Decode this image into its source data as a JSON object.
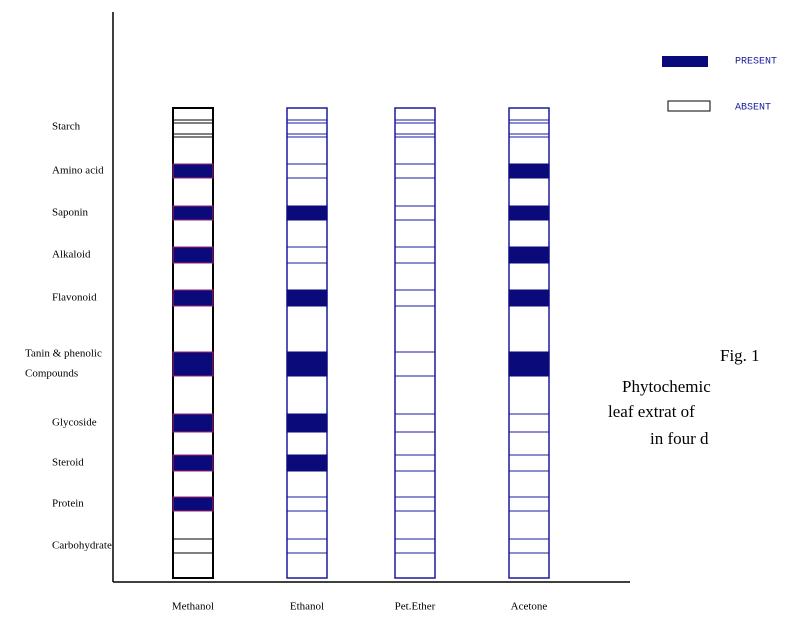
{
  "legend": {
    "present": "PRESENT",
    "absent": "ABSENT"
  },
  "rows": [
    [
      "Starch"
    ],
    [
      "Amino acid"
    ],
    [
      "Saponin"
    ],
    [
      "Alkaloid"
    ],
    [
      "Flavonoid"
    ],
    [
      "Tanin & phenolic",
      "Compounds"
    ],
    [
      "Glycoside"
    ],
    [
      "Steroid"
    ],
    [
      "Protein"
    ],
    [
      "Carbohydrate"
    ]
  ],
  "columns": [
    "Methanol",
    "Ethanol",
    "Pet.Ether",
    "Acetone"
  ],
  "presence": [
    [
      false,
      true,
      true,
      true,
      true,
      true,
      true,
      true,
      true,
      false
    ],
    [
      false,
      false,
      true,
      false,
      true,
      true,
      true,
      true,
      false,
      false
    ],
    [
      false,
      false,
      false,
      false,
      false,
      false,
      false,
      false,
      false,
      false
    ],
    [
      false,
      true,
      true,
      true,
      true,
      true,
      false,
      false,
      false,
      false
    ]
  ],
  "caption": [
    "Fig. 1",
    "Phytochemic",
    "leaf extrat of",
    "in four d"
  ]
}
